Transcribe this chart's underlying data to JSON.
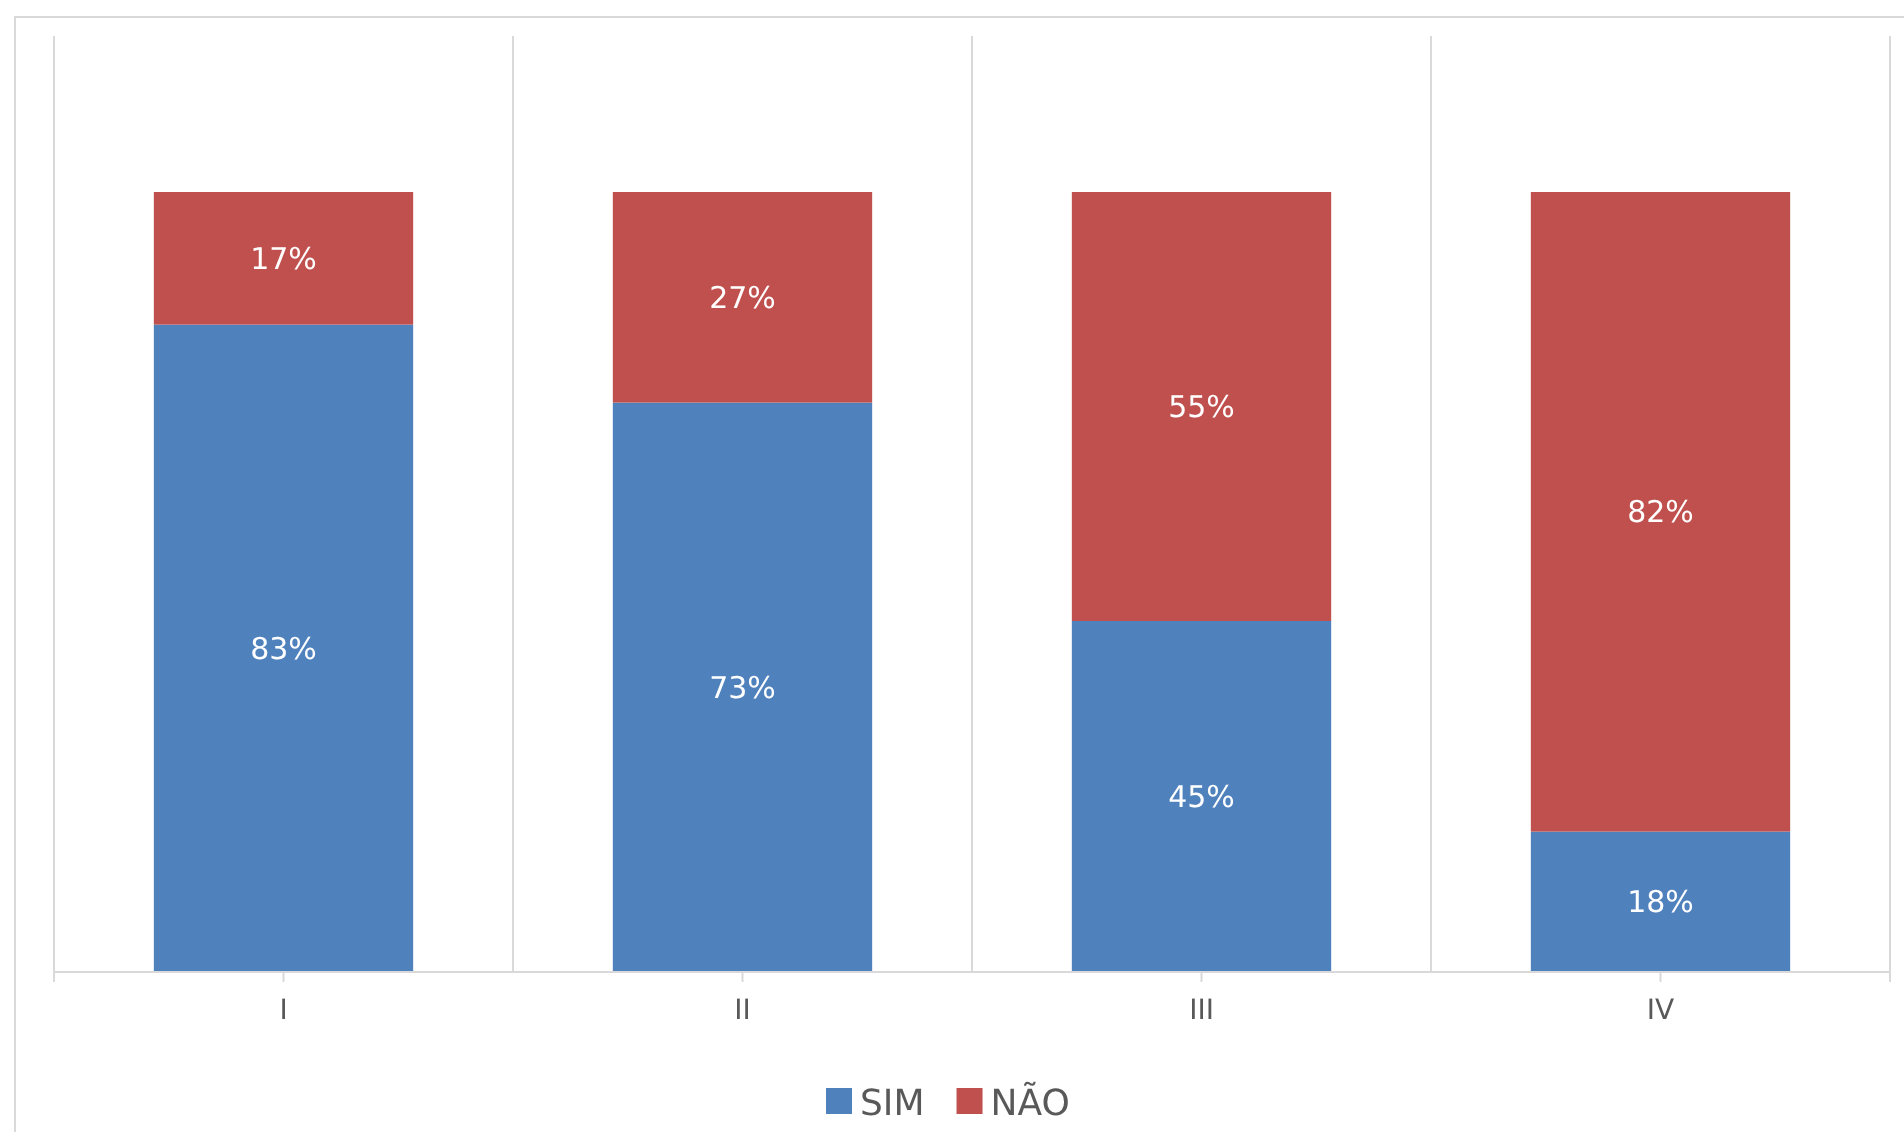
{
  "chart_data": {
    "type": "bar",
    "stacked": true,
    "categories": [
      "I",
      "II",
      "III",
      "IV"
    ],
    "series": [
      {
        "name": "SIM",
        "color": "#4f81bd",
        "values": [
          83,
          73,
          45,
          18
        ],
        "value_labels": [
          "83%",
          "73%",
          "45%",
          "18%"
        ]
      },
      {
        "name": "NÃO",
        "color": "#c0504d",
        "values": [
          17,
          27,
          55,
          82
        ],
        "value_labels": [
          "17%",
          "27%",
          "55%",
          "82%"
        ]
      }
    ],
    "grid": "x",
    "legend": "bottom"
  }
}
